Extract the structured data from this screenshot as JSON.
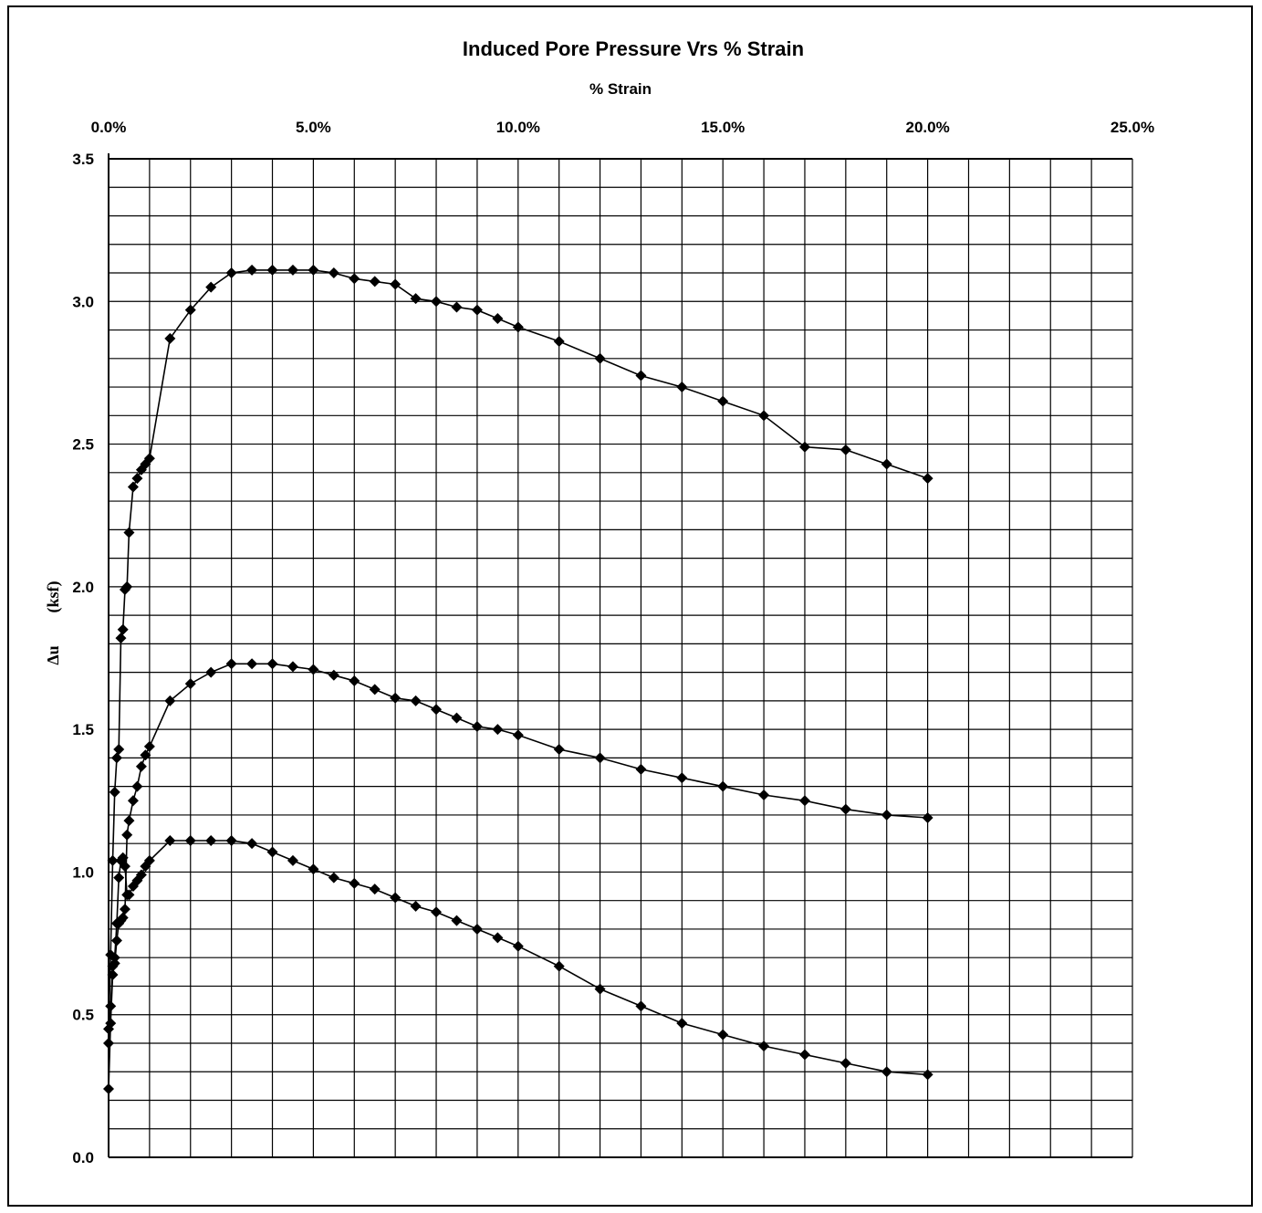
{
  "chart_data": {
    "type": "scatter",
    "title": "Induced Pore Pressure  Vrs % Strain",
    "xlabel": "% Strain",
    "ylabel_symbol": "Δu",
    "ylabel_unit": "(ksf)",
    "x_axis_position": "top",
    "xlim": [
      0,
      25
    ],
    "ylim": [
      0,
      3.5
    ],
    "x_ticks": [
      "0.0%",
      "5.0%",
      "10.0%",
      "15.0%",
      "20.0%",
      "25.0%"
    ],
    "y_ticks": [
      "0.0",
      "0.5",
      "1.0",
      "1.5",
      "2.0",
      "2.5",
      "3.0",
      "3.5"
    ],
    "grid": true,
    "marker": "diamond",
    "series": [
      {
        "x": [
          0.0,
          0.05,
          0.1,
          0.15,
          0.2,
          0.25,
          0.3,
          0.35,
          0.4,
          0.45,
          0.5,
          0.6,
          0.7,
          0.8,
          0.9,
          1.0,
          1.5,
          2.0,
          2.5,
          3.0,
          3.5,
          4.0,
          4.5,
          5.0,
          5.5,
          6.0,
          6.5,
          7.0,
          7.5,
          8.0,
          8.5,
          9.0,
          9.5,
          10.0,
          11.0,
          12.0,
          13.0,
          14.0,
          15.0,
          16.0,
          17.0,
          18.0,
          19.0,
          20.0
        ],
        "y": [
          0.24,
          0.47,
          0.64,
          0.7,
          0.82,
          0.98,
          1.04,
          1.05,
          1.02,
          0.92,
          0.92,
          0.95,
          0.97,
          0.99,
          1.02,
          1.04,
          1.11,
          1.11,
          1.11,
          1.11,
          1.1,
          1.07,
          1.04,
          1.01,
          0.98,
          0.96,
          0.94,
          0.91,
          0.88,
          0.86,
          0.83,
          0.8,
          0.77,
          0.74,
          0.67,
          0.59,
          0.53,
          0.47,
          0.43,
          0.39,
          0.36,
          0.33,
          0.3,
          0.29
        ]
      },
      {
        "x": [
          0.0,
          0.05,
          0.1,
          0.15,
          0.2,
          0.25,
          0.3,
          0.35,
          0.4,
          0.45,
          0.5,
          0.6,
          0.7,
          0.8,
          0.9,
          1.0,
          1.5,
          2.0,
          2.5,
          3.0,
          3.5,
          4.0,
          4.5,
          5.0,
          5.5,
          6.0,
          6.5,
          7.0,
          7.5,
          8.0,
          8.5,
          9.0,
          9.5,
          10.0,
          11.0,
          12.0,
          13.0,
          14.0,
          15.0,
          16.0,
          17.0,
          18.0,
          19.0,
          20.0
        ],
        "y": [
          0.4,
          0.53,
          0.67,
          0.68,
          0.76,
          0.82,
          0.83,
          0.84,
          0.87,
          1.13,
          1.18,
          1.25,
          1.3,
          1.37,
          1.41,
          1.44,
          1.6,
          1.66,
          1.7,
          1.73,
          1.73,
          1.73,
          1.72,
          1.71,
          1.69,
          1.67,
          1.64,
          1.61,
          1.6,
          1.57,
          1.54,
          1.51,
          1.5,
          1.48,
          1.43,
          1.4,
          1.36,
          1.33,
          1.3,
          1.27,
          1.25,
          1.22,
          1.2,
          1.19
        ]
      },
      {
        "x": [
          0.0,
          0.05,
          0.1,
          0.15,
          0.2,
          0.25,
          0.3,
          0.35,
          0.4,
          0.45,
          0.5,
          0.6,
          0.7,
          0.8,
          0.9,
          1.0,
          1.5,
          2.0,
          2.5,
          3.0,
          3.5,
          4.0,
          4.5,
          5.0,
          5.5,
          6.0,
          6.5,
          7.0,
          7.5,
          8.0,
          8.5,
          9.0,
          9.5,
          10.0,
          11.0,
          12.0,
          13.0,
          14.0,
          15.0,
          16.0,
          17.0,
          18.0,
          19.0,
          20.0
        ],
        "y": [
          0.45,
          0.71,
          1.04,
          1.28,
          1.4,
          1.43,
          1.82,
          1.85,
          1.99,
          2.0,
          2.19,
          2.35,
          2.38,
          2.41,
          2.43,
          2.45,
          2.87,
          2.97,
          3.05,
          3.1,
          3.11,
          3.11,
          3.11,
          3.11,
          3.1,
          3.08,
          3.07,
          3.06,
          3.01,
          3.0,
          2.98,
          2.97,
          2.94,
          2.91,
          2.86,
          2.8,
          2.74,
          2.7,
          2.65,
          2.6,
          2.49,
          2.48,
          2.43,
          2.38
        ]
      }
    ]
  }
}
